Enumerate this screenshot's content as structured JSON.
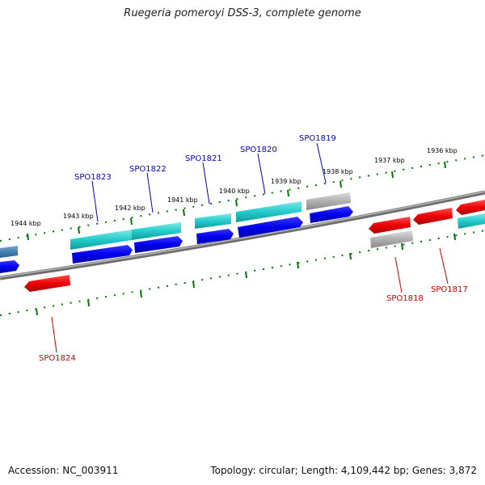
{
  "title": "Ruegeria pomeroyi DSS-3, complete genome",
  "footer": {
    "accession": "Accession: NC_003911",
    "summary": "Topology: circular; Length: 4,109,442 bp; Genes: 3,872"
  },
  "scale_labels": [
    "1936 kbp",
    "1937 kbp",
    "1938 kbp",
    "1939 kbp",
    "1940 kbp",
    "1941 kbp",
    "1942 kbp",
    "1943 kbp",
    "1944 kbp"
  ],
  "gene_labels": {
    "forward": [
      "SPO1823",
      "SPO1822",
      "SPO1821",
      "SPO1820",
      "SPO1819"
    ],
    "reverse": [
      "SPO1818",
      "SPO1817",
      "SPO1824"
    ]
  },
  "colors": {
    "forward_label": "#0000cc",
    "reverse_label": "#cc0000",
    "backbone": "#808080",
    "cds_forward": "#0000ee",
    "rna_forward": "#22cccc",
    "cds_reverse": "#ee0000",
    "pseudo": "#b0b0b0",
    "tick": "#007700"
  }
}
